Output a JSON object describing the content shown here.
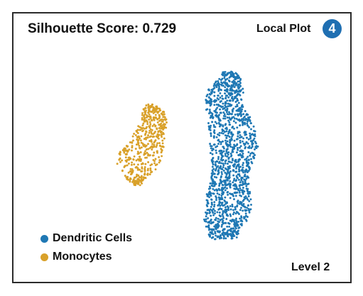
{
  "header": {
    "title": "Silhouette Score: 0.729",
    "plot_label": "Local Plot",
    "plot_number": "4"
  },
  "footer": {
    "level": "Level 2"
  },
  "colors": {
    "dendritic": "#1f78b4",
    "monocytes": "#d9a12a",
    "badge": "#1f6fb2"
  },
  "chart_data": {
    "type": "scatter",
    "title": "Silhouette Score: 0.729",
    "xlabel": "",
    "ylabel": "",
    "grid": false,
    "axes_visible": false,
    "legend_placement": "bottom-left",
    "series": [
      {
        "name": "Dendritic Cells",
        "color": "#1f78b4",
        "approx_point_count": 1400
      },
      {
        "name": "Monocytes",
        "color": "#d9a12a",
        "approx_point_count": 500
      }
    ]
  }
}
